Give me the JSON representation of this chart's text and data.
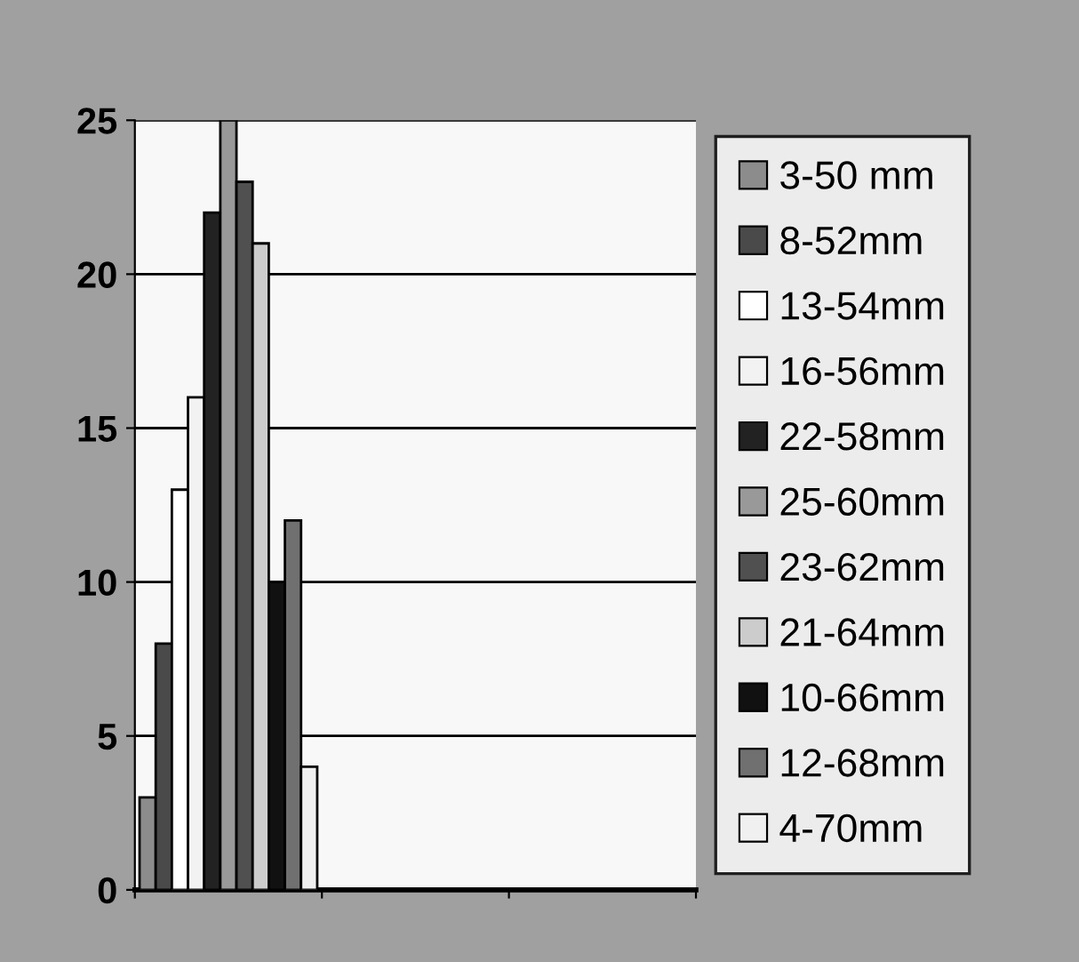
{
  "chart_data": {
    "type": "bar",
    "categories": [
      null,
      null,
      null
    ],
    "series": [
      {
        "name": "3-50 mm",
        "color": "#8c8c8c",
        "values": [
          3,
          null,
          null
        ]
      },
      {
        "name": "8-52mm",
        "color": "#4a4a4a",
        "values": [
          8,
          null,
          null
        ]
      },
      {
        "name": "13-54mm",
        "color": "#ffffff",
        "values": [
          13,
          null,
          null
        ]
      },
      {
        "name": "16-56mm",
        "color": "#f2f2f2",
        "values": [
          16,
          null,
          null
        ]
      },
      {
        "name": "22-58mm",
        "color": "#222222",
        "values": [
          22,
          null,
          null
        ]
      },
      {
        "name": "25-60mm",
        "color": "#999999",
        "values": [
          25,
          null,
          null
        ]
      },
      {
        "name": "23-62mm",
        "color": "#505050",
        "values": [
          23,
          null,
          null
        ]
      },
      {
        "name": "21-64mm",
        "color": "#cccccc",
        "values": [
          21,
          null,
          null
        ]
      },
      {
        "name": "10-66mm",
        "color": "#111111",
        "values": [
          10,
          null,
          null
        ]
      },
      {
        "name": "12-68mm",
        "color": "#707070",
        "values": [
          12,
          null,
          null
        ]
      },
      {
        "name": "4-70mm",
        "color": "#f0f0f0",
        "values": [
          4,
          null,
          null
        ]
      }
    ],
    "ylim": [
      0,
      25
    ],
    "yticks": [
      0,
      5,
      10,
      15,
      20,
      25
    ],
    "grid": "y",
    "legend": "right"
  }
}
